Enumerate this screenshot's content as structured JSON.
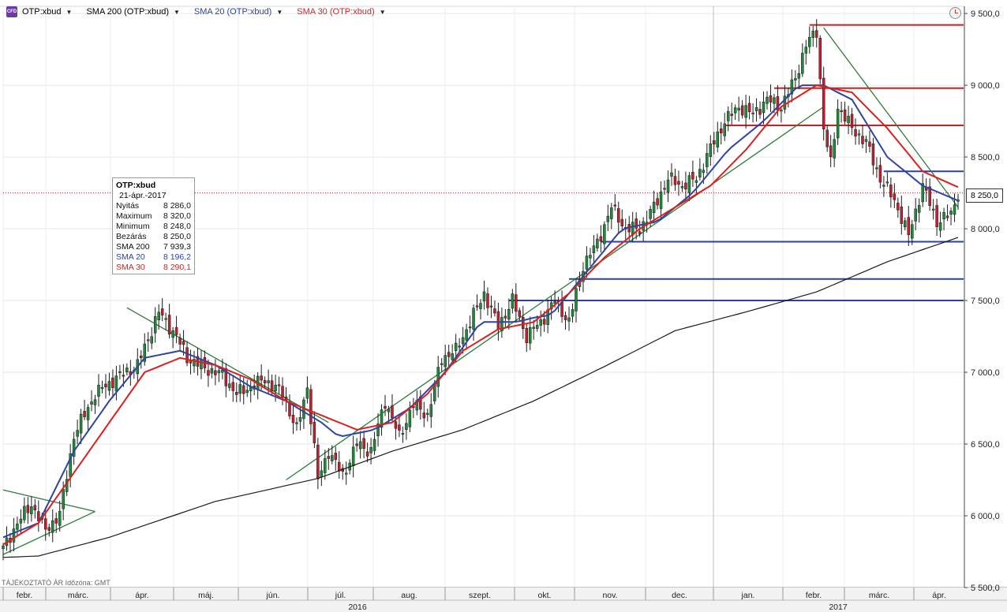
{
  "toolbar": {
    "logo_text": "CFD",
    "symbol": "OTP:xbud",
    "sma200": "SMA 200 (OTP:xbud)",
    "sma20": "SMA 20 (OTP:xbud)",
    "sma30": "SMA 30 (OTP:xbud)",
    "arrow": "▼"
  },
  "colors": {
    "sma200": "#1a1a1a",
    "sma20": "#2e44a0",
    "sma30": "#dd1f1f",
    "bull_candle": "#1f8a3a",
    "bear_candle": "#c0202f",
    "trendline": "#2c7d3c",
    "support_line": "#2e3f9c",
    "resistance_line": "#d21e1e",
    "price_dotted": "#c0202f"
  },
  "info_box": {
    "symbol": "OTP:xbud",
    "date": "21-ápr.-2017",
    "rows": [
      {
        "label": "Nyitás",
        "value": "8 286,0",
        "color": "#111111"
      },
      {
        "label": "Maximum",
        "value": "8 320,0",
        "color": "#111111"
      },
      {
        "label": "Minimum",
        "value": "8 248,0",
        "color": "#111111"
      },
      {
        "label": "Bezárás",
        "value": "8 250,0",
        "color": "#111111"
      },
      {
        "label": "SMA 200",
        "value": "7 939,3",
        "color": "#111111"
      },
      {
        "label": "SMA 20",
        "value": "8 196,2",
        "color": "#2e44a0"
      },
      {
        "label": "SMA 30",
        "value": "8 290,1",
        "color": "#dd1f1f"
      }
    ]
  },
  "footer_note": "TÁJÉKOZTATÓ ÁR  Időzóna: GMT",
  "last_price_label": "8 250,0",
  "chart_data": {
    "type": "candlestick",
    "title": "OTP:xbud",
    "ylim": [
      5500,
      9550
    ],
    "y_ticks": [
      {
        "value": 5500,
        "label": "5 500,0"
      },
      {
        "value": 6000,
        "label": "6 000,0"
      },
      {
        "value": 6500,
        "label": "6 500,0"
      },
      {
        "value": 7000,
        "label": "7 000,0"
      },
      {
        "value": 7500,
        "label": "7 500,0"
      },
      {
        "value": 8000,
        "label": "8 000,0"
      },
      {
        "value": 8500,
        "label": "8 500,0"
      },
      {
        "value": 9000,
        "label": "9 000,0"
      },
      {
        "value": 9500,
        "label": "9 500,0"
      }
    ],
    "months": [
      "febr.",
      "márc.",
      "ápr.",
      "máj.",
      "jún.",
      "júl.",
      "aug.",
      "szept.",
      "okt.",
      "nov.",
      "dec.",
      "jan.",
      "febr.",
      "márc.",
      "ápr."
    ],
    "years": [
      "2016",
      "2017"
    ],
    "last_close": 8250,
    "series": [
      {
        "name": "OTP:xbud",
        "type": "candles",
        "x_start": "2016-02-01",
        "x_end": "2017-04-21",
        "close_anchors": [
          [
            0,
            5770
          ],
          [
            4,
            5950
          ],
          [
            8,
            6080
          ],
          [
            12,
            5900
          ],
          [
            16,
            6010
          ],
          [
            20,
            6560
          ],
          [
            26,
            6850
          ],
          [
            32,
            6960
          ],
          [
            38,
            7050
          ],
          [
            44,
            7420
          ],
          [
            49,
            7250
          ],
          [
            52,
            7100
          ],
          [
            57,
            7030
          ],
          [
            62,
            6980
          ],
          [
            66,
            6850
          ],
          [
            70,
            6900
          ],
          [
            74,
            6950
          ],
          [
            79,
            6850
          ],
          [
            83,
            6600
          ],
          [
            86,
            6900
          ],
          [
            89,
            6250
          ],
          [
            92,
            6450
          ],
          [
            96,
            6280
          ],
          [
            100,
            6500
          ],
          [
            104,
            6450
          ],
          [
            108,
            6800
          ],
          [
            112,
            6550
          ],
          [
            116,
            6780
          ],
          [
            120,
            6700
          ],
          [
            124,
            7100
          ],
          [
            128,
            7150
          ],
          [
            132,
            7350
          ],
          [
            136,
            7550
          ],
          [
            140,
            7320
          ],
          [
            144,
            7500
          ],
          [
            148,
            7250
          ],
          [
            152,
            7350
          ],
          [
            156,
            7500
          ],
          [
            160,
            7350
          ],
          [
            164,
            7750
          ],
          [
            168,
            7900
          ],
          [
            172,
            8150
          ],
          [
            176,
            8000
          ],
          [
            180,
            8000
          ],
          [
            184,
            8150
          ],
          [
            188,
            8350
          ],
          [
            192,
            8300
          ],
          [
            196,
            8350
          ],
          [
            200,
            8560
          ],
          [
            204,
            8750
          ],
          [
            208,
            8850
          ],
          [
            212,
            8800
          ],
          [
            216,
            8900
          ],
          [
            220,
            8850
          ],
          [
            224,
            9050
          ],
          [
            227,
            9280
          ],
          [
            230,
            9380
          ],
          [
            232,
            8700
          ],
          [
            234,
            8450
          ],
          [
            236,
            8850
          ],
          [
            240,
            8700
          ],
          [
            244,
            8600
          ],
          [
            248,
            8350
          ],
          [
            252,
            8200
          ],
          [
            256,
            7950
          ],
          [
            260,
            8300
          ],
          [
            264,
            8050
          ],
          [
            268,
            8100
          ],
          [
            270,
            8250
          ]
        ]
      },
      {
        "name": "SMA 200",
        "values": [
          [
            0,
            5710
          ],
          [
            10,
            5720
          ],
          [
            30,
            5850
          ],
          [
            60,
            6100
          ],
          [
            89,
            6260
          ],
          [
            110,
            6450
          ],
          [
            130,
            6600
          ],
          [
            150,
            6800
          ],
          [
            170,
            7040
          ],
          [
            190,
            7290
          ],
          [
            210,
            7420
          ],
          [
            230,
            7560
          ],
          [
            250,
            7770
          ],
          [
            270,
            7939.3
          ]
        ]
      },
      {
        "name": "SMA 20",
        "values": [
          [
            0,
            5850
          ],
          [
            10,
            5950
          ],
          [
            20,
            6450
          ],
          [
            30,
            6800
          ],
          [
            40,
            7100
          ],
          [
            50,
            7150
          ],
          [
            60,
            7050
          ],
          [
            70,
            6900
          ],
          [
            80,
            6800
          ],
          [
            90,
            6650
          ],
          [
            95,
            6550
          ],
          [
            105,
            6600
          ],
          [
            115,
            6750
          ],
          [
            125,
            7000
          ],
          [
            135,
            7350
          ],
          [
            145,
            7350
          ],
          [
            150,
            7380
          ],
          [
            155,
            7400
          ],
          [
            165,
            7700
          ],
          [
            175,
            8000
          ],
          [
            185,
            8050
          ],
          [
            195,
            8250
          ],
          [
            205,
            8550
          ],
          [
            215,
            8750
          ],
          [
            225,
            9000
          ],
          [
            232,
            9000
          ],
          [
            240,
            8900
          ],
          [
            250,
            8500
          ],
          [
            260,
            8300
          ],
          [
            270,
            8196.2
          ]
        ]
      },
      {
        "name": "SMA 30",
        "values": [
          [
            0,
            5800
          ],
          [
            10,
            5950
          ],
          [
            20,
            6300
          ],
          [
            30,
            6650
          ],
          [
            40,
            7000
          ],
          [
            50,
            7100
          ],
          [
            60,
            7050
          ],
          [
            70,
            6950
          ],
          [
            80,
            6800
          ],
          [
            90,
            6700
          ],
          [
            100,
            6600
          ],
          [
            110,
            6650
          ],
          [
            120,
            6850
          ],
          [
            130,
            7150
          ],
          [
            140,
            7300
          ],
          [
            150,
            7350
          ],
          [
            160,
            7550
          ],
          [
            170,
            7800
          ],
          [
            180,
            8000
          ],
          [
            190,
            8150
          ],
          [
            200,
            8300
          ],
          [
            210,
            8550
          ],
          [
            220,
            8850
          ],
          [
            230,
            9000
          ],
          [
            240,
            8950
          ],
          [
            250,
            8700
          ],
          [
            260,
            8400
          ],
          [
            270,
            8290.1
          ]
        ]
      }
    ],
    "trendlines": [
      {
        "from": [
          0,
          5730
        ],
        "to": [
          26,
          6030
        ]
      },
      {
        "from": [
          0,
          6180
        ],
        "to": [
          26,
          6030
        ]
      },
      {
        "from": [
          35,
          7450
        ],
        "to": [
          92,
          6650
        ]
      },
      {
        "from": [
          80,
          6250
        ],
        "to": [
          232,
          8850
        ]
      },
      {
        "from": [
          232,
          9400
        ],
        "to": [
          270,
          8150
        ]
      }
    ],
    "resistance_lines": [
      {
        "value": 9420,
        "from_idx": 228
      },
      {
        "value": 8980,
        "from_idx": 218
      },
      {
        "value": 8720,
        "from_idx": 204
      }
    ],
    "support_lines": [
      {
        "value": 8400,
        "from_idx": 249
      },
      {
        "value": 7910,
        "from_idx": 169
      },
      {
        "value": 7650,
        "from_idx": 160
      },
      {
        "value": 7500,
        "from_idx": 143
      }
    ],
    "grid": true
  }
}
